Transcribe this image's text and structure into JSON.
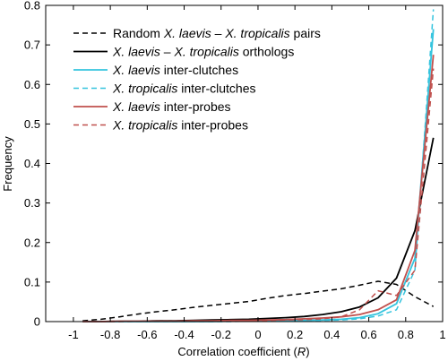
{
  "chart_data": {
    "type": "line",
    "xlabel": "Correlation coefficient (R)",
    "xlabel_parts": [
      "Correlation coefficient (",
      "R",
      ")"
    ],
    "ylabel": "Frequency",
    "xlim": [
      -1.15,
      1.0
    ],
    "ylim": [
      0,
      0.8
    ],
    "x_ticks": [
      -1,
      -0.8,
      -0.6,
      -0.4,
      -0.2,
      0,
      0.2,
      0.4,
      0.6,
      0.8,
      1
    ],
    "x_tick_labels": [
      "-1",
      "-0.8",
      "-0.6",
      "-0.4",
      "-0.2",
      "0",
      "0.2",
      "0.4",
      "0.6",
      "0.8",
      "1"
    ],
    "y_ticks": [
      0,
      0.1,
      0.2,
      0.3,
      0.4,
      0.5,
      0.6,
      0.7,
      0.8
    ],
    "y_tick_labels": [
      "0",
      "0.1",
      "0.2",
      "0.3",
      "0.4",
      "0.5",
      "0.6",
      "0.7",
      "0.8"
    ],
    "grid": false,
    "legend_position": "top-center",
    "series": [
      {
        "name": "Random X. laevis – X. tropicalis pairs",
        "legend_parts": [
          [
            "Random ",
            false
          ],
          [
            "X. laevis",
            true
          ],
          [
            " – ",
            false
          ],
          [
            "X. tropicalis",
            true
          ],
          [
            " pairs",
            false
          ]
        ],
        "color": "#000000",
        "dashed": true,
        "x": [
          -0.95,
          -0.85,
          -0.75,
          -0.65,
          -0.55,
          -0.45,
          -0.35,
          -0.25,
          -0.15,
          -0.05,
          0.05,
          0.15,
          0.25,
          0.35,
          0.45,
          0.55,
          0.65,
          0.75,
          0.85,
          0.95
        ],
        "y": [
          0.002,
          0.006,
          0.012,
          0.019,
          0.025,
          0.03,
          0.036,
          0.041,
          0.046,
          0.051,
          0.059,
          0.066,
          0.071,
          0.077,
          0.083,
          0.092,
          0.102,
          0.094,
          0.063,
          0.038
        ]
      },
      {
        "name": "X. laevis – X. tropicalis orthologs",
        "legend_parts": [
          [
            "X. laevis",
            true
          ],
          [
            " – ",
            false
          ],
          [
            "X. tropicalis",
            true
          ],
          [
            " orthologs",
            false
          ]
        ],
        "color": "#000000",
        "dashed": false,
        "x": [
          -0.95,
          -0.85,
          -0.75,
          -0.65,
          -0.55,
          -0.45,
          -0.35,
          -0.25,
          -0.15,
          -0.05,
          0.05,
          0.15,
          0.25,
          0.35,
          0.45,
          0.55,
          0.65,
          0.75,
          0.85,
          0.95
        ],
        "y": [
          0.0,
          0.0,
          0.001,
          0.001,
          0.002,
          0.002,
          0.003,
          0.004,
          0.005,
          0.006,
          0.008,
          0.01,
          0.013,
          0.018,
          0.025,
          0.037,
          0.06,
          0.11,
          0.23,
          0.465
        ]
      },
      {
        "name": "X. laevis inter-clutches",
        "legend_parts": [
          [
            "X. laevis",
            true
          ],
          [
            " inter-clutches",
            false
          ]
        ],
        "color": "#35c4de",
        "dashed": false,
        "x": [
          -0.95,
          -0.85,
          -0.75,
          -0.65,
          -0.55,
          -0.45,
          -0.35,
          -0.25,
          -0.15,
          -0.05,
          0.05,
          0.15,
          0.25,
          0.35,
          0.45,
          0.55,
          0.65,
          0.75,
          0.85,
          0.95
        ],
        "y": [
          0.0,
          0.0,
          0.0,
          0.0,
          0.0,
          0.0,
          0.0,
          0.0,
          0.001,
          0.001,
          0.001,
          0.002,
          0.003,
          0.004,
          0.006,
          0.01,
          0.02,
          0.045,
          0.16,
          0.74
        ]
      },
      {
        "name": "X. tropicalis inter-clutches",
        "legend_parts": [
          [
            "X. tropicalis",
            true
          ],
          [
            " inter-clutches",
            false
          ]
        ],
        "color": "#35c4de",
        "dashed": true,
        "x": [
          -0.95,
          -0.85,
          -0.75,
          -0.65,
          -0.55,
          -0.45,
          -0.35,
          -0.25,
          -0.15,
          -0.05,
          0.05,
          0.15,
          0.25,
          0.35,
          0.45,
          0.55,
          0.65,
          0.75,
          0.85,
          0.95
        ],
        "y": [
          0.0,
          0.0,
          0.0,
          0.0,
          0.0,
          0.0,
          0.0,
          0.0,
          0.0,
          0.001,
          0.001,
          0.001,
          0.002,
          0.003,
          0.004,
          0.007,
          0.014,
          0.03,
          0.13,
          0.79
        ]
      },
      {
        "name": "X. laevis inter-probes",
        "legend_parts": [
          [
            "X. laevis",
            true
          ],
          [
            " inter-probes",
            false
          ]
        ],
        "color": "#c0504d",
        "dashed": false,
        "x": [
          -0.95,
          -0.85,
          -0.75,
          -0.65,
          -0.55,
          -0.45,
          -0.35,
          -0.25,
          -0.15,
          -0.05,
          0.05,
          0.15,
          0.25,
          0.35,
          0.45,
          0.55,
          0.65,
          0.75,
          0.85,
          0.95
        ],
        "y": [
          0.0,
          0.0,
          0.001,
          0.001,
          0.001,
          0.001,
          0.002,
          0.002,
          0.003,
          0.003,
          0.004,
          0.005,
          0.007,
          0.009,
          0.012,
          0.018,
          0.03,
          0.055,
          0.18,
          0.675
        ]
      },
      {
        "name": "X. tropicalis inter-probes",
        "legend_parts": [
          [
            "X. tropicalis",
            true
          ],
          [
            " inter-probes",
            false
          ]
        ],
        "color": "#c0504d",
        "dashed": true,
        "x": [
          -0.95,
          -0.85,
          -0.75,
          -0.65,
          -0.55,
          -0.45,
          -0.35,
          -0.25,
          -0.15,
          -0.05,
          0.05,
          0.15,
          0.25,
          0.35,
          0.45,
          0.55,
          0.65,
          0.75,
          0.85,
          0.95
        ],
        "y": [
          0.0,
          0.0,
          0.0,
          0.001,
          0.001,
          0.001,
          0.001,
          0.002,
          0.002,
          0.002,
          0.003,
          0.004,
          0.005,
          0.007,
          0.012,
          0.03,
          0.078,
          0.066,
          0.13,
          0.64
        ]
      }
    ]
  }
}
